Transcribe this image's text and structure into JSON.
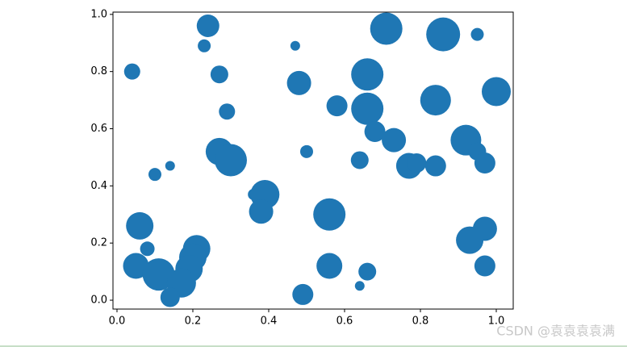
{
  "chart_data": {
    "type": "scatter",
    "color": "#1f77b4",
    "x": [
      0.24,
      0.23,
      0.04,
      0.27,
      0.29,
      0.47,
      0.48,
      0.71,
      0.86,
      0.95,
      0.66,
      1.0,
      0.58,
      0.66,
      0.84,
      0.68,
      0.73,
      0.27,
      0.3,
      0.5,
      0.64,
      0.92,
      0.95,
      0.77,
      0.79,
      0.84,
      0.97,
      0.1,
      0.14,
      0.36,
      0.39,
      0.38,
      0.06,
      0.08,
      0.56,
      0.97,
      0.93,
      0.21,
      0.2,
      0.05,
      0.11,
      0.19,
      0.17,
      0.56,
      0.66,
      0.64,
      0.97,
      0.14,
      0.49
    ],
    "y": [
      0.96,
      0.89,
      0.8,
      0.79,
      0.66,
      0.89,
      0.76,
      0.95,
      0.93,
      0.93,
      0.79,
      0.73,
      0.68,
      0.67,
      0.7,
      0.59,
      0.56,
      0.52,
      0.49,
      0.52,
      0.49,
      0.56,
      0.52,
      0.47,
      0.48,
      0.47,
      0.48,
      0.44,
      0.47,
      0.37,
      0.37,
      0.31,
      0.26,
      0.18,
      0.3,
      0.25,
      0.21,
      0.18,
      0.15,
      0.12,
      0.09,
      0.11,
      0.06,
      0.12,
      0.1,
      0.05,
      0.12,
      0.01,
      0.02
    ],
    "sizes": [
      784,
      256,
      400,
      484,
      400,
      144,
      900,
      1600,
      1764,
      256,
      1600,
      1296,
      676,
      1600,
      1444,
      676,
      900,
      1156,
      1600,
      256,
      484,
      1444,
      484,
      1024,
      576,
      676,
      676,
      256,
      144,
      196,
      1296,
      900,
      1156,
      324,
      1600,
      900,
      1156,
      1156,
      1156,
      1024,
      1600,
      1156,
      1296,
      1024,
      484,
      144,
      676,
      576,
      676
    ],
    "xlim": [
      -0.0106,
      1.0447
    ],
    "ylim": [
      -0.031,
      1.008
    ],
    "xticks": [
      {
        "value": 0,
        "label": "0.0"
      },
      0.2,
      0.4,
      0.6,
      0.8,
      {
        "value": 1,
        "label": "1.0"
      }
    ],
    "yticks": [
      {
        "value": 0,
        "label": "0.0"
      },
      0.2,
      0.4,
      0.6,
      0.8,
      {
        "value": 1,
        "label": "1.0"
      }
    ]
  },
  "watermark": "CSDN @袁袁袁袁满"
}
